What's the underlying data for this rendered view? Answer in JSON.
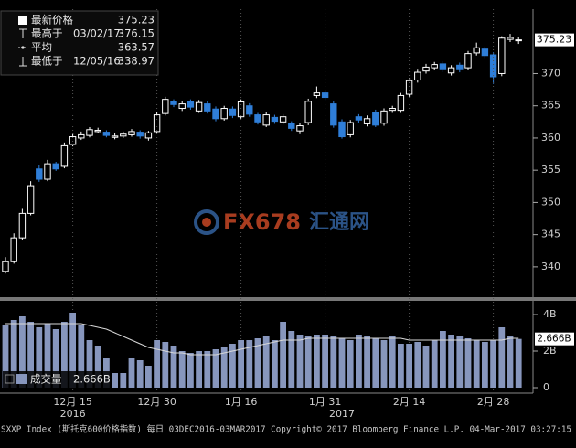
{
  "chart_data": [
    {
      "type": "candlestick",
      "categories": [
        null,
        null,
        null,
        null,
        null,
        null,
        null,
        null,
        "12月 15",
        null,
        null,
        null,
        null,
        null,
        null,
        null,
        null,
        null,
        "12月 30",
        null,
        null,
        null,
        null,
        null,
        null,
        null,
        null,
        null,
        "1月 16",
        null,
        null,
        null,
        null,
        null,
        null,
        null,
        null,
        null,
        "1月 31",
        null,
        null,
        null,
        null,
        null,
        null,
        null,
        null,
        null,
        "2月 14",
        null,
        null,
        null,
        null,
        null,
        null,
        null,
        null,
        null,
        "2月 28",
        null,
        null,
        null
      ],
      "category_years": [
        null,
        null,
        null,
        null,
        null,
        null,
        null,
        null,
        "2016",
        null,
        null,
        null,
        null,
        null,
        null,
        null,
        null,
        null,
        null,
        null,
        null,
        null,
        null,
        null,
        null,
        null,
        null,
        null,
        null,
        null,
        null,
        null,
        null,
        null,
        null,
        null,
        null,
        null,
        null,
        null,
        "2017",
        null,
        null,
        null,
        null,
        null,
        null,
        null,
        null,
        null,
        null,
        null,
        null,
        null,
        null,
        null,
        null,
        null,
        null,
        null,
        null,
        null
      ],
      "open": [
        339.3,
        340.8,
        344.5,
        348.3,
        355.2,
        353.6,
        356.0,
        355.6,
        359.0,
        360.0,
        360.4,
        361.0,
        360.9,
        360.1,
        360.3,
        360.5,
        360.9,
        360.0,
        361.0,
        363.8,
        365.6,
        364.6,
        365.6,
        364.2,
        365.3,
        364.5,
        363.0,
        364.5,
        363.3,
        365.0,
        363.6,
        362.0,
        363.2,
        362.5,
        362.2,
        361.1,
        362.4,
        366.6,
        367.0,
        365.3,
        362.5,
        360.5,
        363.3,
        362.2,
        364.0,
        362.3,
        364.3,
        364.3,
        366.8,
        369.0,
        370.4,
        370.9,
        371.5,
        370.1,
        371.3,
        370.9,
        373.2,
        373.8,
        372.9,
        370.0,
        375.3,
        375.1
      ],
      "high": [
        341.5,
        345.2,
        349.0,
        353.3,
        355.8,
        356.6,
        356.3,
        359.3,
        360.7,
        361.0,
        361.7,
        361.6,
        361.2,
        360.8,
        361.0,
        361.4,
        361.2,
        361.1,
        364.0,
        366.4,
        366.0,
        365.8,
        366.0,
        365.9,
        365.7,
        364.9,
        365.0,
        364.9,
        366.0,
        365.4,
        363.9,
        364.0,
        363.6,
        363.7,
        362.6,
        362.3,
        366.1,
        368.0,
        367.4,
        365.7,
        362.9,
        362.8,
        363.7,
        363.5,
        364.4,
        364.6,
        365.0,
        367.0,
        369.3,
        370.6,
        371.5,
        371.8,
        371.9,
        371.3,
        371.7,
        373.5,
        374.8,
        374.2,
        373.3,
        375.8,
        376.15,
        375.6
      ],
      "low": [
        338.97,
        340.5,
        344.1,
        348.0,
        353.2,
        353.3,
        354.9,
        355.3,
        358.7,
        359.7,
        360.1,
        360.7,
        360.1,
        359.8,
        360.0,
        360.2,
        359.9,
        359.6,
        360.7,
        363.5,
        364.8,
        364.2,
        364.4,
        363.9,
        363.8,
        362.6,
        362.7,
        363.1,
        363.0,
        363.3,
        362.1,
        361.7,
        362.2,
        362.1,
        361.1,
        360.6,
        362.0,
        366.2,
        365.9,
        361.6,
        359.9,
        360.1,
        362.4,
        361.8,
        361.7,
        361.9,
        363.9,
        363.9,
        366.4,
        368.6,
        370.0,
        370.5,
        370.2,
        369.7,
        370.2,
        370.5,
        372.8,
        372.4,
        368.4,
        369.6,
        374.9,
        374.6
      ],
      "close": [
        340.8,
        344.5,
        348.3,
        352.6,
        353.6,
        356.0,
        355.2,
        358.8,
        360.2,
        360.5,
        361.3,
        361.2,
        360.4,
        360.3,
        360.6,
        361.0,
        360.3,
        360.8,
        363.6,
        366.0,
        365.2,
        365.3,
        364.8,
        365.5,
        364.2,
        363.0,
        364.6,
        363.5,
        365.6,
        363.7,
        362.5,
        363.6,
        362.6,
        363.3,
        361.5,
        361.9,
        365.7,
        367.0,
        366.3,
        362.0,
        360.2,
        362.4,
        362.8,
        363.0,
        362.0,
        364.2,
        364.6,
        366.6,
        368.9,
        370.2,
        371.0,
        371.4,
        370.6,
        370.9,
        370.6,
        373.1,
        374.0,
        372.8,
        369.5,
        375.5,
        375.6,
        375.23
      ],
      "up_color": "#ffffff",
      "down_color": "#2f7ed8",
      "ylim": [
        335.3,
        380
      ],
      "yticks": [
        340,
        345,
        350,
        355,
        360,
        365,
        370
      ],
      "last_price": 375.23,
      "legend": [
        {
          "label": "最新价格",
          "value": 375.23
        },
        {
          "label": "最高于",
          "date": "03/02/17",
          "value": 376.15
        },
        {
          "label": "平均",
          "value": 363.57
        },
        {
          "label": "最低于",
          "date": "12/05/16",
          "value": 338.97
        }
      ]
    },
    {
      "type": "bar",
      "name": "成交量",
      "color": "#8796bd",
      "values": [
        3.4,
        3.7,
        3.9,
        3.6,
        3.3,
        3.5,
        3.2,
        3.6,
        4.1,
        3.4,
        2.6,
        2.3,
        1.6,
        0.8,
        0.8,
        1.6,
        1.5,
        1.2,
        2.6,
        2.5,
        2.3,
        2.0,
        1.9,
        2.0,
        2.0,
        2.1,
        2.2,
        2.4,
        2.6,
        2.6,
        2.7,
        2.8,
        2.6,
        3.6,
        3.1,
        2.9,
        2.8,
        2.9,
        2.9,
        2.8,
        2.7,
        2.6,
        2.9,
        2.8,
        2.7,
        2.6,
        2.8,
        2.4,
        2.4,
        2.5,
        2.3,
        2.6,
        3.1,
        2.9,
        2.8,
        2.7,
        2.6,
        2.5,
        2.6,
        3.3,
        2.8,
        2.666
      ],
      "average": {
        "color": "#d8d8d8",
        "values": [
          3.5,
          3.5,
          3.5,
          3.5,
          3.5,
          3.5,
          3.5,
          3.5,
          3.5,
          3.5,
          3.4,
          3.3,
          3.2,
          3.0,
          2.8,
          2.6,
          2.4,
          2.2,
          2.1,
          2.0,
          1.9,
          1.9,
          1.8,
          1.8,
          1.8,
          1.8,
          1.9,
          2.0,
          2.1,
          2.2,
          2.3,
          2.4,
          2.5,
          2.6,
          2.6,
          2.6,
          2.7,
          2.7,
          2.7,
          2.7,
          2.7,
          2.7,
          2.7,
          2.7,
          2.7,
          2.7,
          2.7,
          2.7,
          2.6,
          2.6,
          2.6,
          2.6,
          2.6,
          2.6,
          2.6,
          2.6,
          2.6,
          2.6,
          2.6,
          2.6,
          2.7,
          2.7
        ]
      },
      "last_value": {
        "value": 2.666,
        "label": "2.666B"
      },
      "ylim": [
        -0.3,
        4.7
      ],
      "yticks": [
        0,
        {
          "value": 2,
          "label": "2B"
        },
        {
          "value": 4,
          "label": "4B"
        }
      ]
    }
  ],
  "watermark": {
    "brand": "FX678",
    "name": "汇通网"
  },
  "footer": "SXXP Index (斯托克600价格指数)  每日 03DEC2016-03MAR2017  Copyright© 2017 Bloomberg Finance L.P.   04-Mar-2017 03:27:15"
}
